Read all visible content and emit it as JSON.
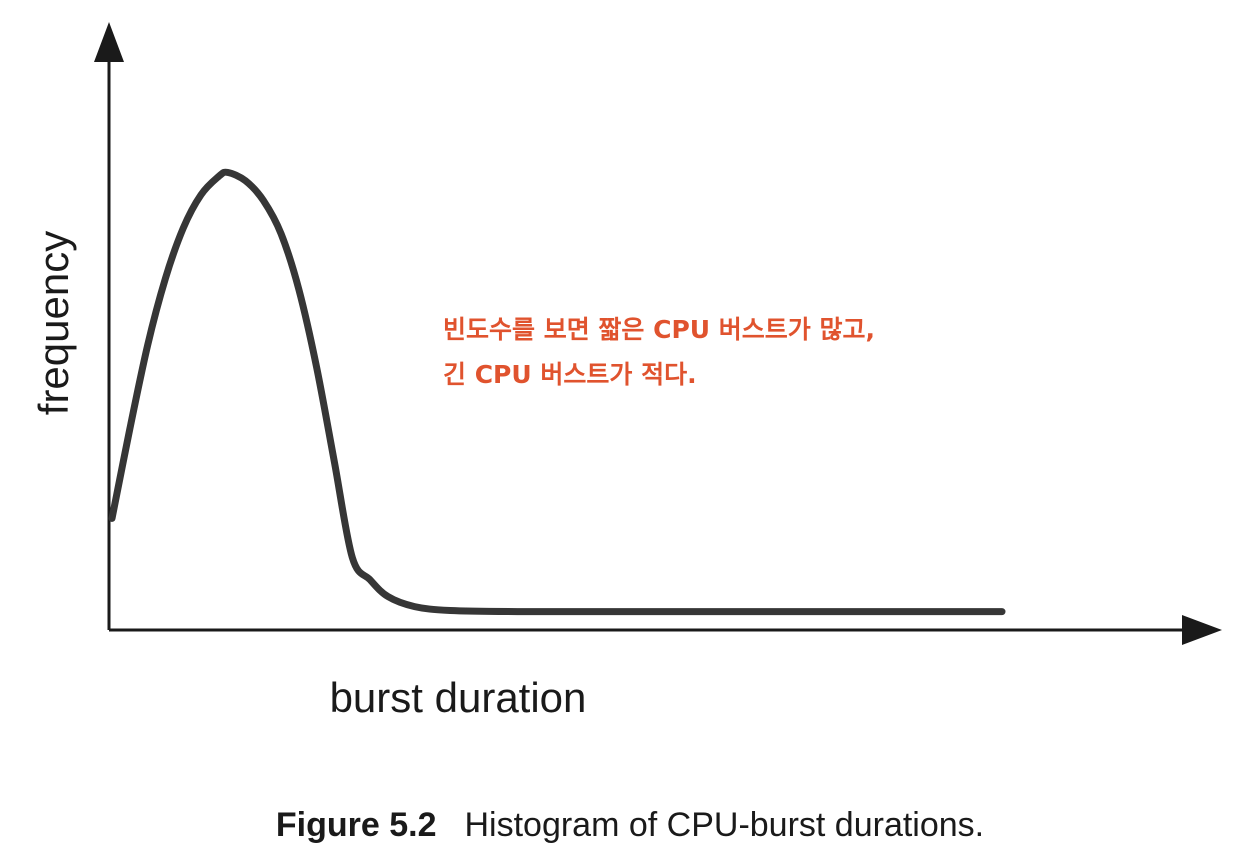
{
  "chart_data": {
    "type": "line",
    "xlabel": "burst duration",
    "ylabel": "frequency",
    "annotation_lines": [
      "빈도수를 보면 짧은 CPU 버스트가 많고,",
      "긴 CPU 버스트가 적다."
    ],
    "annotation_color": "#e0532e",
    "grid": false,
    "legend": "none",
    "x_ticks": false,
    "y_ticks": false,
    "xlim": [
      0,
      100
    ],
    "ylim": [
      0,
      100
    ],
    "series": [
      {
        "values": [
          [
            0.0,
            20.0
          ],
          [
            2.0,
            36.0
          ],
          [
            4.0,
            51.0
          ],
          [
            6.0,
            63.0
          ],
          [
            8.0,
            72.0
          ],
          [
            10.0,
            78.0
          ],
          [
            12.0,
            81.3
          ],
          [
            13.0,
            82.0
          ],
          [
            15.0,
            80.5
          ],
          [
            17.0,
            77.0
          ],
          [
            19.0,
            71.0
          ],
          [
            21.0,
            61.0
          ],
          [
            23.0,
            47.0
          ],
          [
            25.0,
            30.0
          ],
          [
            27.0,
            13.0
          ],
          [
            29.0,
            9.0
          ],
          [
            31.0,
            6.0
          ],
          [
            34.0,
            4.2
          ],
          [
            38.0,
            3.5
          ],
          [
            46.0,
            3.3
          ],
          [
            60.0,
            3.3
          ],
          [
            80.0,
            3.3
          ],
          [
            100.0,
            3.3
          ]
        ],
        "color": "#363636"
      }
    ]
  },
  "caption": {
    "figure_number": "Figure 5.2",
    "text": "Histogram of CPU-burst durations."
  }
}
